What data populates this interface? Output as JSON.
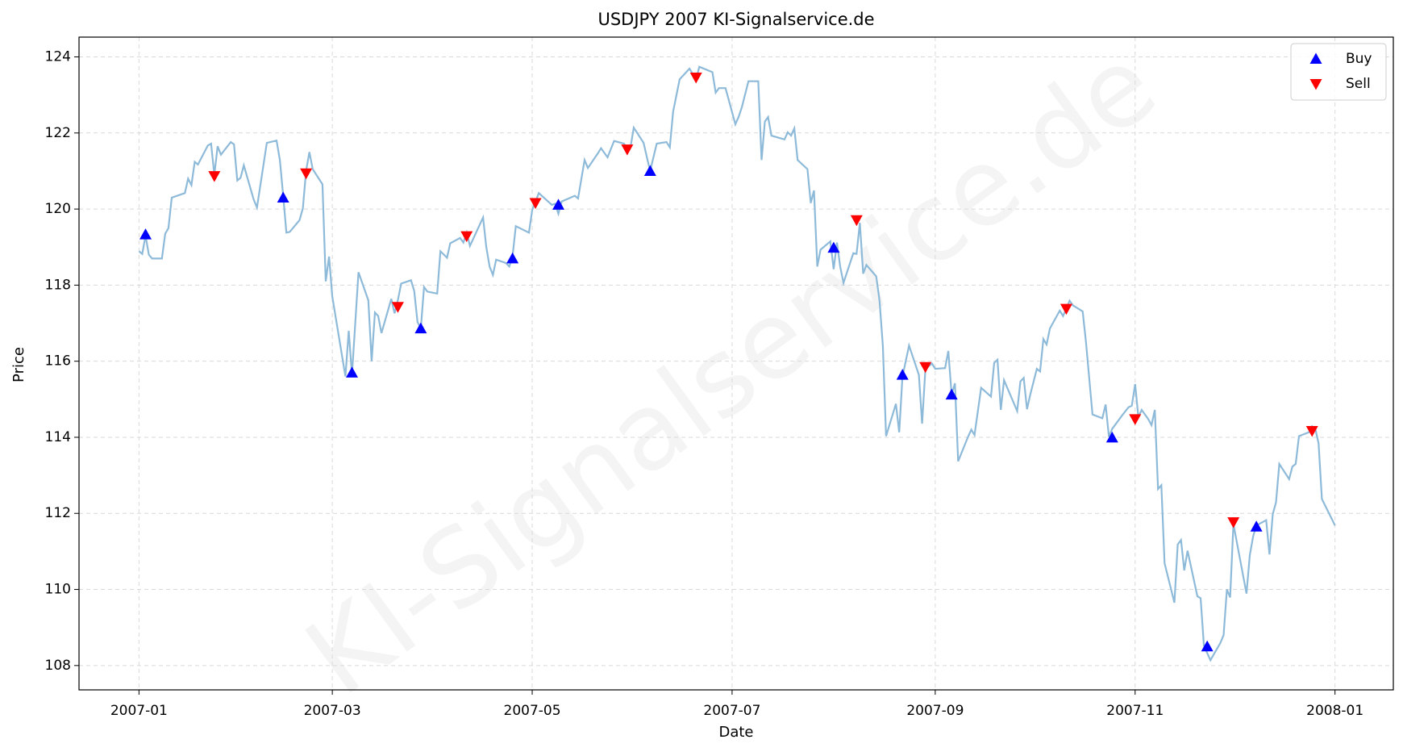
{
  "chart_data": {
    "type": "line",
    "title": "USDJPY 2007 KI-Signalservice.de",
    "xlabel": "Date",
    "ylabel": "Price",
    "watermark": "KI-Signalservice.de",
    "color": "#8ebad9",
    "grid": true,
    "legend": "upper right",
    "xlim": [
      -18.3,
      382.8
    ],
    "ylim": [
      107.36,
      124.52
    ],
    "xticks": [
      {
        "value": 0,
        "label": "2007-01"
      },
      {
        "value": 59,
        "label": "2007-03"
      },
      {
        "value": 120,
        "label": "2007-05"
      },
      {
        "value": 181,
        "label": "2007-07"
      },
      {
        "value": 243,
        "label": "2007-09"
      },
      {
        "value": 304,
        "label": "2007-11"
      },
      {
        "value": 365,
        "label": "2008-01"
      }
    ],
    "yticks": [
      108,
      110,
      112,
      114,
      116,
      118,
      120,
      122,
      124
    ],
    "x": [
      0,
      1,
      2,
      3,
      4,
      7,
      8,
      9,
      10,
      14,
      15,
      16,
      17,
      18,
      21,
      22,
      23,
      24,
      25,
      28,
      29,
      30,
      31,
      32,
      35,
      36,
      39,
      42,
      43,
      44,
      45,
      46,
      49,
      50,
      51,
      52,
      53,
      56,
      57,
      58,
      59,
      63,
      64,
      65,
      66,
      67,
      70,
      71,
      72,
      73,
      74,
      77,
      78,
      79,
      80,
      83,
      84,
      85,
      86,
      87,
      88,
      91,
      92,
      94,
      95,
      98,
      99,
      100,
      101,
      105,
      106,
      107,
      108,
      109,
      112,
      113,
      114,
      115,
      119,
      120,
      122,
      126,
      127,
      128,
      129,
      133,
      134,
      136,
      137,
      140,
      141,
      143,
      145,
      148,
      149,
      150,
      151,
      154,
      155,
      156,
      158,
      161,
      162,
      163,
      165,
      168,
      169,
      170,
      171,
      175,
      176,
      177,
      179,
      182,
      183,
      184,
      186,
      189,
      190,
      191,
      192,
      193,
      197,
      198,
      199,
      200,
      201,
      204,
      205,
      206,
      207,
      208,
      211,
      212,
      213,
      214,
      215,
      218,
      219,
      220,
      221,
      222,
      225,
      226,
      227,
      228,
      231,
      232,
      233,
      235,
      238,
      239,
      240,
      242,
      243,
      246,
      247,
      248,
      249,
      250,
      253,
      254,
      255,
      257,
      260,
      261,
      262,
      263,
      264,
      268,
      269,
      270,
      271,
      272,
      274,
      275,
      276,
      277,
      278,
      281,
      282,
      283,
      284,
      285,
      288,
      289,
      291,
      294,
      295,
      296,
      297,
      300,
      302,
      303,
      304,
      305,
      306,
      308,
      309,
      310,
      311,
      312,
      313,
      316,
      317,
      318,
      319,
      320,
      323,
      324,
      325,
      327,
      330,
      331,
      332,
      333,
      334,
      338,
      339,
      340,
      341,
      344,
      345,
      346,
      347,
      348,
      351,
      352,
      353,
      354,
      357,
      358,
      359,
      360,
      361,
      365
    ],
    "values": [
      118.89,
      118.82,
      119.3,
      118.8,
      118.7,
      118.7,
      119.35,
      119.5,
      120.3,
      120.42,
      120.8,
      120.63,
      121.24,
      121.17,
      121.67,
      121.72,
      120.9,
      121.65,
      121.43,
      121.76,
      121.7,
      120.75,
      120.82,
      121.15,
      120.25,
      120.04,
      121.74,
      121.8,
      121.29,
      120.35,
      119.38,
      119.4,
      119.71,
      120.02,
      121.0,
      121.5,
      121.05,
      120.65,
      118.1,
      118.75,
      117.7,
      115.6,
      116.8,
      115.64,
      117.0,
      118.34,
      117.6,
      116.0,
      117.28,
      117.19,
      116.74,
      117.64,
      117.26,
      117.6,
      118.04,
      118.13,
      117.85,
      117.03,
      116.86,
      117.95,
      117.83,
      117.78,
      118.89,
      118.72,
      119.1,
      119.24,
      119.12,
      119.38,
      119.03,
      119.78,
      119.0,
      118.49,
      118.27,
      118.67,
      118.58,
      118.49,
      118.75,
      119.55,
      119.38,
      119.97,
      120.42,
      120.11,
      120.14,
      119.88,
      120.2,
      120.35,
      120.28,
      121.29,
      121.08,
      121.46,
      121.6,
      121.36,
      121.79,
      121.72,
      121.6,
      121.62,
      122.14,
      121.74,
      121.36,
      121.0,
      121.72,
      121.76,
      121.62,
      122.56,
      123.41,
      123.69,
      123.55,
      123.41,
      123.74,
      123.6,
      123.06,
      123.18,
      123.18,
      122.23,
      122.42,
      122.68,
      123.36,
      123.36,
      121.29,
      122.3,
      122.42,
      121.93,
      121.83,
      122.02,
      121.93,
      122.12,
      121.29,
      121.05,
      120.16,
      120.49,
      118.49,
      118.93,
      119.15,
      118.42,
      119.12,
      118.49,
      118.06,
      118.84,
      118.82,
      119.64,
      118.3,
      118.53,
      118.23,
      117.59,
      116.41,
      114.03,
      114.88,
      114.13,
      115.59,
      116.41,
      115.64,
      114.36,
      115.8,
      115.94,
      115.8,
      115.82,
      116.27,
      115.12,
      115.42,
      113.37,
      114.01,
      114.2,
      114.06,
      115.3,
      115.07,
      115.96,
      116.04,
      114.72,
      115.5,
      114.69,
      115.47,
      115.56,
      114.74,
      115.12,
      115.8,
      115.73,
      116.58,
      116.44,
      116.86,
      117.33,
      117.19,
      117.38,
      117.59,
      117.47,
      117.31,
      116.51,
      114.6,
      114.5,
      114.86,
      114.01,
      114.22,
      114.57,
      114.79,
      114.83,
      115.4,
      114.53,
      114.72,
      114.48,
      114.32,
      114.72,
      112.64,
      112.74,
      110.69,
      109.65,
      111.18,
      111.3,
      110.5,
      111.02,
      109.82,
      109.77,
      108.52,
      108.14,
      108.59,
      108.8,
      110.0,
      109.79,
      111.72,
      109.89,
      110.9,
      111.39,
      111.68,
      111.82,
      110.92,
      111.98,
      112.29,
      113.3,
      112.9,
      113.23,
      113.3,
      114.03,
      114.13,
      114.29,
      114.22,
      113.84,
      112.38,
      111.68
    ],
    "signals": [
      {
        "name": "Buy",
        "color": "#0000ff",
        "marker": "up",
        "x": [
          2,
          44,
          65,
          86,
          114,
          128,
          156,
          212,
          233,
          248,
          297,
          326,
          341
        ],
        "values": [
          119.33,
          120.3,
          115.7,
          116.86,
          118.7,
          120.11,
          121.0,
          118.98,
          115.64,
          115.12,
          113.99,
          108.5,
          111.65
        ]
      },
      {
        "name": "Sell",
        "color": "#ff0000",
        "marker": "down",
        "x": [
          23,
          51,
          79,
          100,
          121,
          149,
          170,
          219,
          240,
          283,
          304,
          334,
          358
        ],
        "values": [
          120.87,
          120.94,
          117.43,
          119.29,
          120.16,
          121.57,
          123.46,
          119.71,
          115.85,
          117.38,
          114.48,
          111.77,
          114.17
        ]
      }
    ]
  }
}
